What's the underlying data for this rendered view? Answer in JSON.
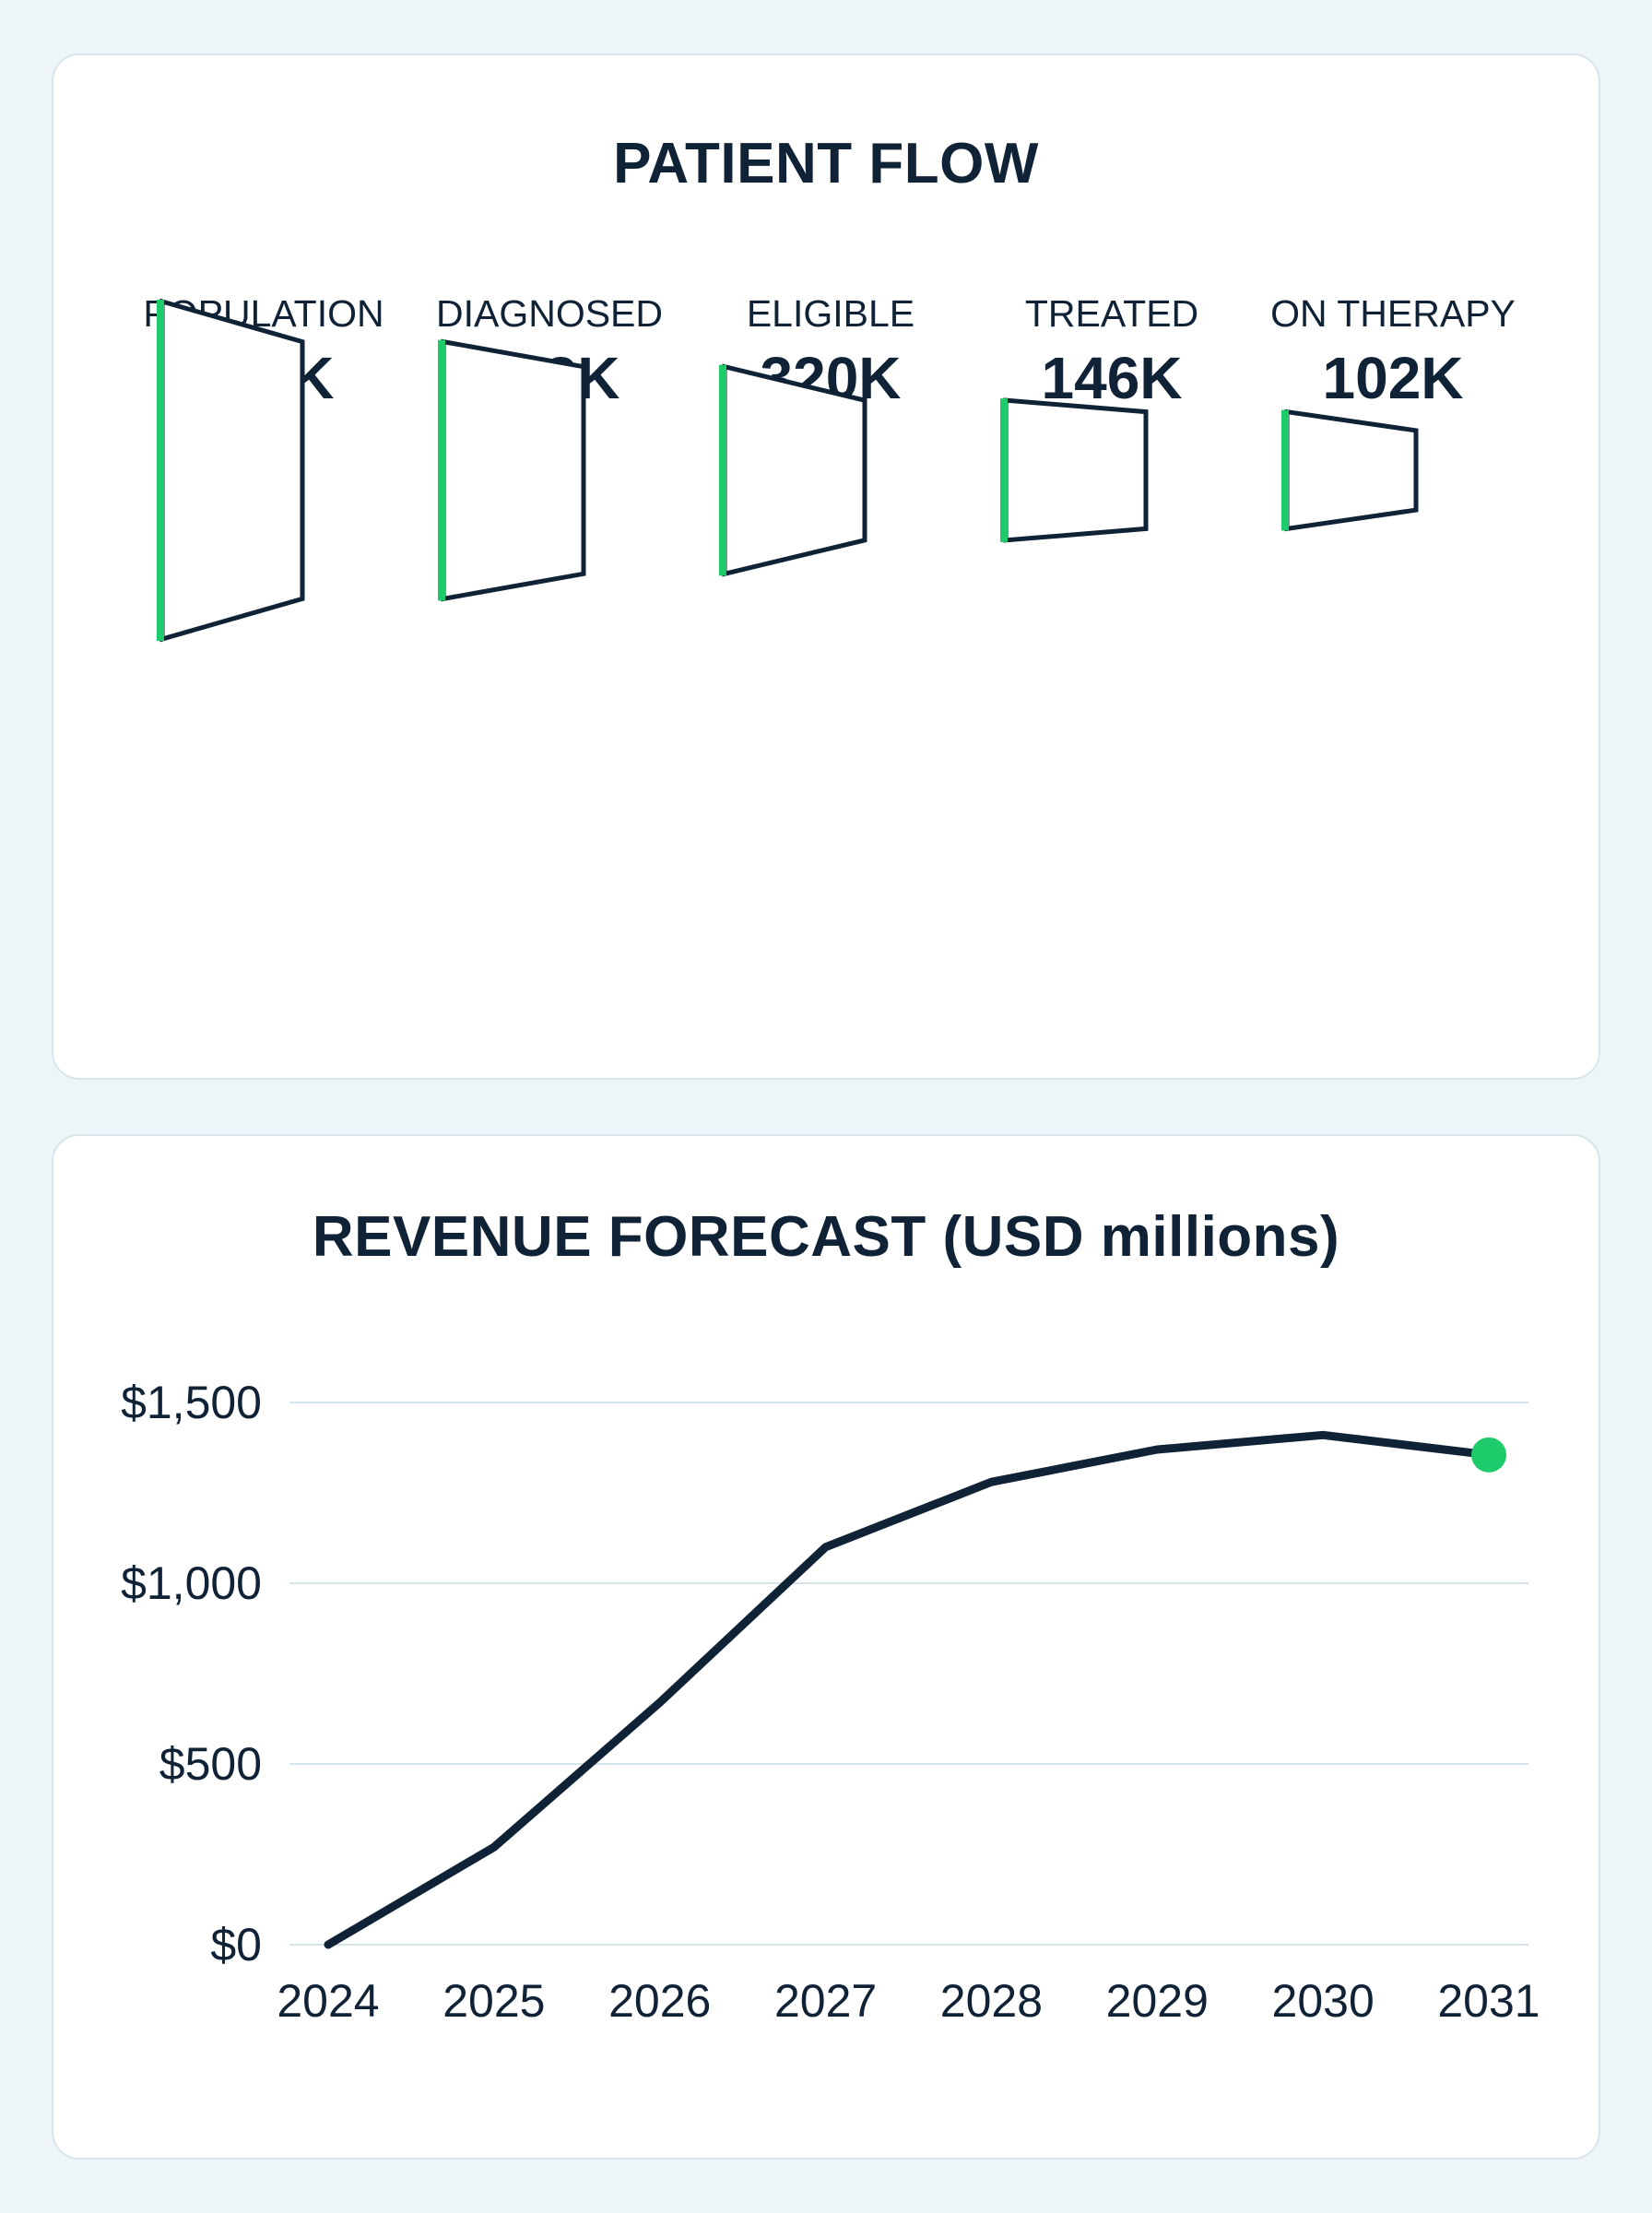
{
  "patient_flow": {
    "title": "PATIENT FLOW",
    "stages": [
      {
        "label": "POPULATION",
        "value_text": "850K"
      },
      {
        "label": "DIAGNOSED",
        "value_text": "493K"
      },
      {
        "label": "ELIGIBLE",
        "value_text": "320K"
      },
      {
        "label": "TREATED",
        "value_text": "146K"
      },
      {
        "label": "ON THERAPY",
        "value_text": "102K"
      }
    ]
  },
  "chart_data": [
    {
      "type": "funnel",
      "title": "PATIENT FLOW",
      "categories": [
        "POPULATION",
        "DIAGNOSED",
        "ELIGIBLE",
        "TREATED",
        "ON THERAPY"
      ],
      "values": [
        850000,
        493000,
        320000,
        146000,
        102000
      ]
    },
    {
      "type": "line",
      "title": "REVENUE FORECAST (USD millions)",
      "x": [
        2024,
        2025,
        2026,
        2027,
        2028,
        2029,
        2030,
        2031
      ],
      "series": [
        {
          "values": [
            0,
            270,
            670,
            1100,
            1280,
            1370,
            1410,
            1355
          ]
        }
      ],
      "ylim": [
        0,
        1500
      ],
      "yticks": [
        0,
        500,
        1000,
        1500
      ],
      "ytick_labels": [
        "$0",
        "$500",
        "$1,000",
        "$1,500"
      ],
      "grid": true,
      "highlight_last_point": true
    }
  ],
  "colors": {
    "ink": "#0f2236",
    "accent": "#1ecb6a",
    "grid": "#d5e3ea",
    "card_border": "#d7e6ec",
    "background": "#eef5f8"
  }
}
